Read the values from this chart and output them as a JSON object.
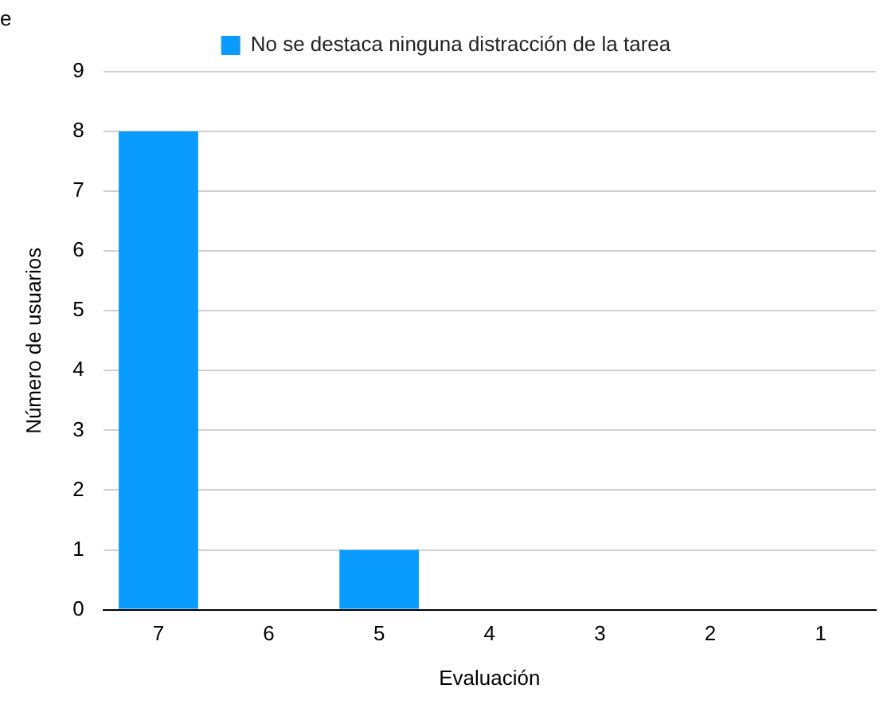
{
  "chart_data": {
    "type": "bar",
    "xlabel": "Evaluación",
    "ylabel": "Número de usuarios",
    "categories": [
      "7",
      "6",
      "5",
      "4",
      "3",
      "2",
      "1"
    ],
    "series": [
      {
        "name": "No se destaca ninguna distracción de la tarea",
        "color": "#0a9bff",
        "values": [
          8,
          0,
          1,
          0,
          0,
          0,
          0
        ]
      }
    ],
    "ylim": [
      0,
      9
    ],
    "yticks": [
      0,
      1,
      2,
      3,
      4,
      5,
      6,
      7,
      8,
      9
    ],
    "grid": "y",
    "legend": "top",
    "annotations": [
      "e"
    ]
  }
}
